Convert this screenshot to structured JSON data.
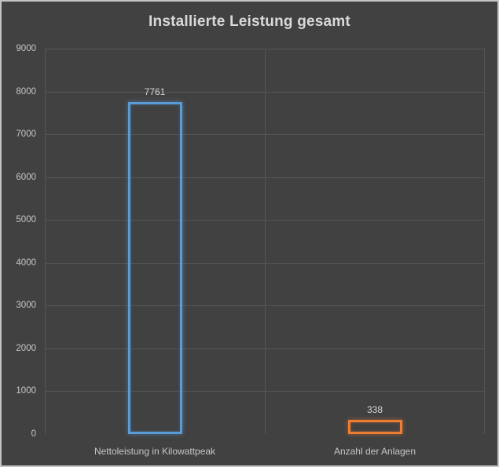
{
  "window": {
    "background": "#414141",
    "outer_border": "#c4c4c4"
  },
  "colors": {
    "gridline": "#565656",
    "tick_text": "#c6c6c6",
    "category_text": "#c6c6c6",
    "value_text": "#d4d4d4",
    "title_text": "#d9d9d9",
    "bar_fill": "transparent"
  },
  "chart_data": {
    "type": "bar",
    "title": "Installierte Leistung gesamt",
    "categories": [
      "Nettoleistung in Kilowattpeak",
      "Anzahl der Anlagen"
    ],
    "values": [
      7761,
      338
    ],
    "value_labels": [
      "7761",
      "338"
    ],
    "series": [
      {
        "name": "Nettoleistung in Kilowattpeak",
        "value": 7761,
        "color": "#5B9BD5"
      },
      {
        "name": "Anzahl der Anlagen",
        "value": 338,
        "color": "#ED7D31"
      }
    ],
    "bar_colors": [
      "#5B9BD5",
      "#ED7D31"
    ],
    "bar_style": "outline-only",
    "xlabel": "",
    "ylabel": "",
    "ylim": [
      0,
      9000
    ],
    "ytick_step": 1000,
    "ytick_labels": [
      "0",
      "1000",
      "2000",
      "3000",
      "4000",
      "5000",
      "6000",
      "7000",
      "8000",
      "9000"
    ],
    "grid": true,
    "legend": "none"
  }
}
